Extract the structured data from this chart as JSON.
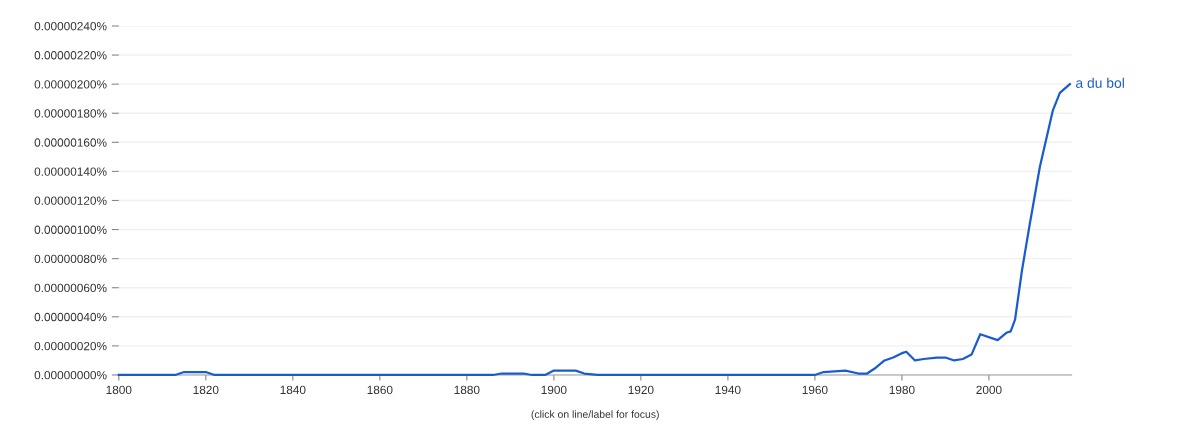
{
  "chart_data": {
    "type": "line",
    "xlabel": "(click on line/label for focus)",
    "x": [
      1800,
      1813,
      1815,
      1820,
      1822,
      1886,
      1888,
      1893,
      1895,
      1898,
      1900,
      1903,
      1905,
      1907,
      1910,
      1960,
      1962,
      1967,
      1970,
      1972,
      1974,
      1976,
      1978,
      1980,
      1981,
      1983,
      1985,
      1988,
      1990,
      1992,
      1994,
      1996,
      1998,
      2002,
      2004,
      2005,
      2006,
      2007.6,
      2009.4,
      2011.7,
      2014.7,
      2016.3,
      2018.6
    ],
    "series": [
      {
        "name": "a du bol",
        "color": "#1a5ccc",
        "values": [
          0,
          0,
          2e-08,
          2e-08,
          0,
          0,
          1e-08,
          1e-08,
          0,
          0,
          3e-08,
          3e-08,
          3e-08,
          1e-08,
          0,
          0,
          2e-08,
          3e-08,
          1e-08,
          1e-08,
          5e-08,
          1e-07,
          1.2e-07,
          1.5e-07,
          1.6e-07,
          1e-07,
          1.1e-07,
          1.2e-07,
          1.2e-07,
          1e-07,
          1.1e-07,
          1.4e-07,
          2.8e-07,
          2.4e-07,
          2.9e-07,
          3e-07,
          3.8e-07,
          7.2e-07,
          1.04e-06,
          1.43e-06,
          1.82e-06,
          1.94e-06,
          2e-06
        ]
      }
    ],
    "xlim": [
      1800,
      2019
    ],
    "xticks": [
      1800,
      1820,
      1840,
      1860,
      1880,
      1900,
      1920,
      1940,
      1960,
      1980,
      2000
    ],
    "ylim": [
      0,
      2.4e-06
    ],
    "yticks": [
      {
        "value": 0,
        "label": "0.00000000%"
      },
      {
        "value": 2e-07,
        "label": "0.00000020%"
      },
      {
        "value": 4e-07,
        "label": "0.00000040%"
      },
      {
        "value": 6e-07,
        "label": "0.00000060%"
      },
      {
        "value": 8e-07,
        "label": "0.00000080%"
      },
      {
        "value": 1e-06,
        "label": "0.00000100%"
      },
      {
        "value": 1.2e-06,
        "label": "0.00000120%"
      },
      {
        "value": 1.4e-06,
        "label": "0.00000140%"
      },
      {
        "value": 1.6e-06,
        "label": "0.00000160%"
      },
      {
        "value": 1.8e-06,
        "label": "0.00000180%"
      },
      {
        "value": 2e-06,
        "label": "0.00000200%"
      },
      {
        "value": 2.2e-06,
        "label": "0.00000220%"
      },
      {
        "value": 2.4e-06,
        "label": "0.00000240%"
      }
    ],
    "grid": "y",
    "legend": false,
    "marker": "none",
    "line_style": "solid"
  }
}
